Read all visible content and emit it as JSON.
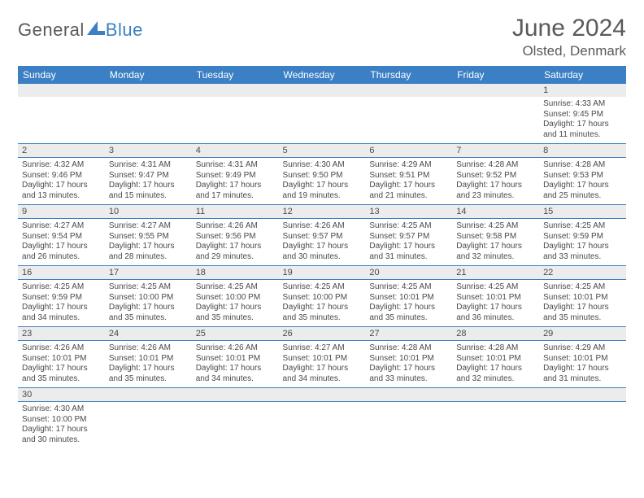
{
  "brand": {
    "part1": "General",
    "part2": "Blue"
  },
  "title": "June 2024",
  "location": "Olsted, Denmark",
  "colors": {
    "header_bg": "#3b7fc4",
    "header_text": "#ffffff",
    "daynum_bg": "#ececec",
    "text": "#4a4a4a",
    "rule": "#3b7fc4"
  },
  "dow": [
    "Sunday",
    "Monday",
    "Tuesday",
    "Wednesday",
    "Thursday",
    "Friday",
    "Saturday"
  ],
  "weeks": [
    {
      "nums": [
        "",
        "",
        "",
        "",
        "",
        "",
        "1"
      ],
      "cells": [
        null,
        null,
        null,
        null,
        null,
        null,
        {
          "sr": "4:33 AM",
          "ss": "9:45 PM",
          "dl": "17 hours",
          "dm": "and 11 minutes."
        }
      ]
    },
    {
      "nums": [
        "2",
        "3",
        "4",
        "5",
        "6",
        "7",
        "8"
      ],
      "cells": [
        {
          "sr": "4:32 AM",
          "ss": "9:46 PM",
          "dl": "17 hours",
          "dm": "and 13 minutes."
        },
        {
          "sr": "4:31 AM",
          "ss": "9:47 PM",
          "dl": "17 hours",
          "dm": "and 15 minutes."
        },
        {
          "sr": "4:31 AM",
          "ss": "9:49 PM",
          "dl": "17 hours",
          "dm": "and 17 minutes."
        },
        {
          "sr": "4:30 AM",
          "ss": "9:50 PM",
          "dl": "17 hours",
          "dm": "and 19 minutes."
        },
        {
          "sr": "4:29 AM",
          "ss": "9:51 PM",
          "dl": "17 hours",
          "dm": "and 21 minutes."
        },
        {
          "sr": "4:28 AM",
          "ss": "9:52 PM",
          "dl": "17 hours",
          "dm": "and 23 minutes."
        },
        {
          "sr": "4:28 AM",
          "ss": "9:53 PM",
          "dl": "17 hours",
          "dm": "and 25 minutes."
        }
      ]
    },
    {
      "nums": [
        "9",
        "10",
        "11",
        "12",
        "13",
        "14",
        "15"
      ],
      "cells": [
        {
          "sr": "4:27 AM",
          "ss": "9:54 PM",
          "dl": "17 hours",
          "dm": "and 26 minutes."
        },
        {
          "sr": "4:27 AM",
          "ss": "9:55 PM",
          "dl": "17 hours",
          "dm": "and 28 minutes."
        },
        {
          "sr": "4:26 AM",
          "ss": "9:56 PM",
          "dl": "17 hours",
          "dm": "and 29 minutes."
        },
        {
          "sr": "4:26 AM",
          "ss": "9:57 PM",
          "dl": "17 hours",
          "dm": "and 30 minutes."
        },
        {
          "sr": "4:25 AM",
          "ss": "9:57 PM",
          "dl": "17 hours",
          "dm": "and 31 minutes."
        },
        {
          "sr": "4:25 AM",
          "ss": "9:58 PM",
          "dl": "17 hours",
          "dm": "and 32 minutes."
        },
        {
          "sr": "4:25 AM",
          "ss": "9:59 PM",
          "dl": "17 hours",
          "dm": "and 33 minutes."
        }
      ]
    },
    {
      "nums": [
        "16",
        "17",
        "18",
        "19",
        "20",
        "21",
        "22"
      ],
      "cells": [
        {
          "sr": "4:25 AM",
          "ss": "9:59 PM",
          "dl": "17 hours",
          "dm": "and 34 minutes."
        },
        {
          "sr": "4:25 AM",
          "ss": "10:00 PM",
          "dl": "17 hours",
          "dm": "and 35 minutes."
        },
        {
          "sr": "4:25 AM",
          "ss": "10:00 PM",
          "dl": "17 hours",
          "dm": "and 35 minutes."
        },
        {
          "sr": "4:25 AM",
          "ss": "10:00 PM",
          "dl": "17 hours",
          "dm": "and 35 minutes."
        },
        {
          "sr": "4:25 AM",
          "ss": "10:01 PM",
          "dl": "17 hours",
          "dm": "and 35 minutes."
        },
        {
          "sr": "4:25 AM",
          "ss": "10:01 PM",
          "dl": "17 hours",
          "dm": "and 36 minutes."
        },
        {
          "sr": "4:25 AM",
          "ss": "10:01 PM",
          "dl": "17 hours",
          "dm": "and 35 minutes."
        }
      ]
    },
    {
      "nums": [
        "23",
        "24",
        "25",
        "26",
        "27",
        "28",
        "29"
      ],
      "cells": [
        {
          "sr": "4:26 AM",
          "ss": "10:01 PM",
          "dl": "17 hours",
          "dm": "and 35 minutes."
        },
        {
          "sr": "4:26 AM",
          "ss": "10:01 PM",
          "dl": "17 hours",
          "dm": "and 35 minutes."
        },
        {
          "sr": "4:26 AM",
          "ss": "10:01 PM",
          "dl": "17 hours",
          "dm": "and 34 minutes."
        },
        {
          "sr": "4:27 AM",
          "ss": "10:01 PM",
          "dl": "17 hours",
          "dm": "and 34 minutes."
        },
        {
          "sr": "4:28 AM",
          "ss": "10:01 PM",
          "dl": "17 hours",
          "dm": "and 33 minutes."
        },
        {
          "sr": "4:28 AM",
          "ss": "10:01 PM",
          "dl": "17 hours",
          "dm": "and 32 minutes."
        },
        {
          "sr": "4:29 AM",
          "ss": "10:01 PM",
          "dl": "17 hours",
          "dm": "and 31 minutes."
        }
      ]
    },
    {
      "nums": [
        "30",
        "",
        "",
        "",
        "",
        "",
        ""
      ],
      "cells": [
        {
          "sr": "4:30 AM",
          "ss": "10:00 PM",
          "dl": "17 hours",
          "dm": "and 30 minutes."
        },
        null,
        null,
        null,
        null,
        null,
        null
      ]
    }
  ],
  "labels": {
    "sr": "Sunrise:",
    "ss": "Sunset:",
    "dl": "Daylight:"
  }
}
